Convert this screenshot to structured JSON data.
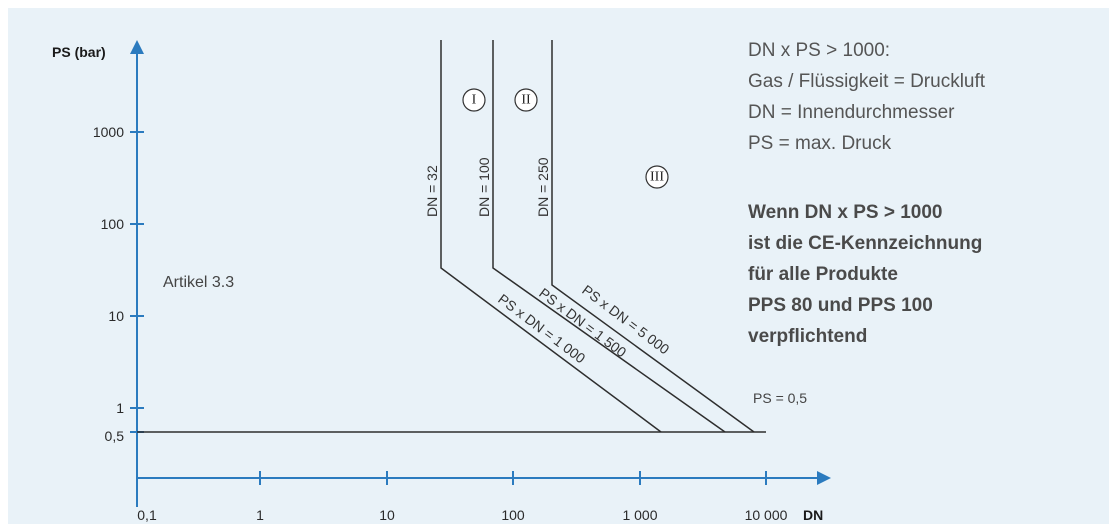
{
  "axes": {
    "y_title": "PS (bar)",
    "x_title": "DN",
    "y_ticks": [
      "1000",
      "100",
      "10",
      "1",
      "0,5"
    ],
    "x_ticks": [
      "0,1",
      "1",
      "10",
      "100",
      "1 000",
      "10 000"
    ],
    "colors": {
      "axis": "#2b7bbf",
      "background": "#e9f2f8"
    }
  },
  "curves": {
    "dn32": "DN = 32",
    "dn100": "DN = 100",
    "dn250": "DN = 250",
    "ps1000": "PS x DN = 1 000",
    "ps1500": "PS x DN = 1 500",
    "ps5000": "PS x DN = 5 000",
    "ps05": "PS = 0,5"
  },
  "zones": {
    "zone1": "I",
    "zone2": "II",
    "zone3": "III"
  },
  "artikel": "Artikel 3.3",
  "notes": {
    "line1": "DN x PS > 1000:",
    "line2": "Gas / Flüssigkeit = Druckluft",
    "line3": "DN = Innendurchmesser",
    "line4": "PS = max. Druck"
  },
  "bold_note": {
    "line1": "Wenn DN x PS > 1000",
    "line2": "ist die CE-Kennzeichnung",
    "line3": "für alle Produkte",
    "line4": "PPS 80 und PPS 100",
    "line5": "verpflichtend"
  }
}
